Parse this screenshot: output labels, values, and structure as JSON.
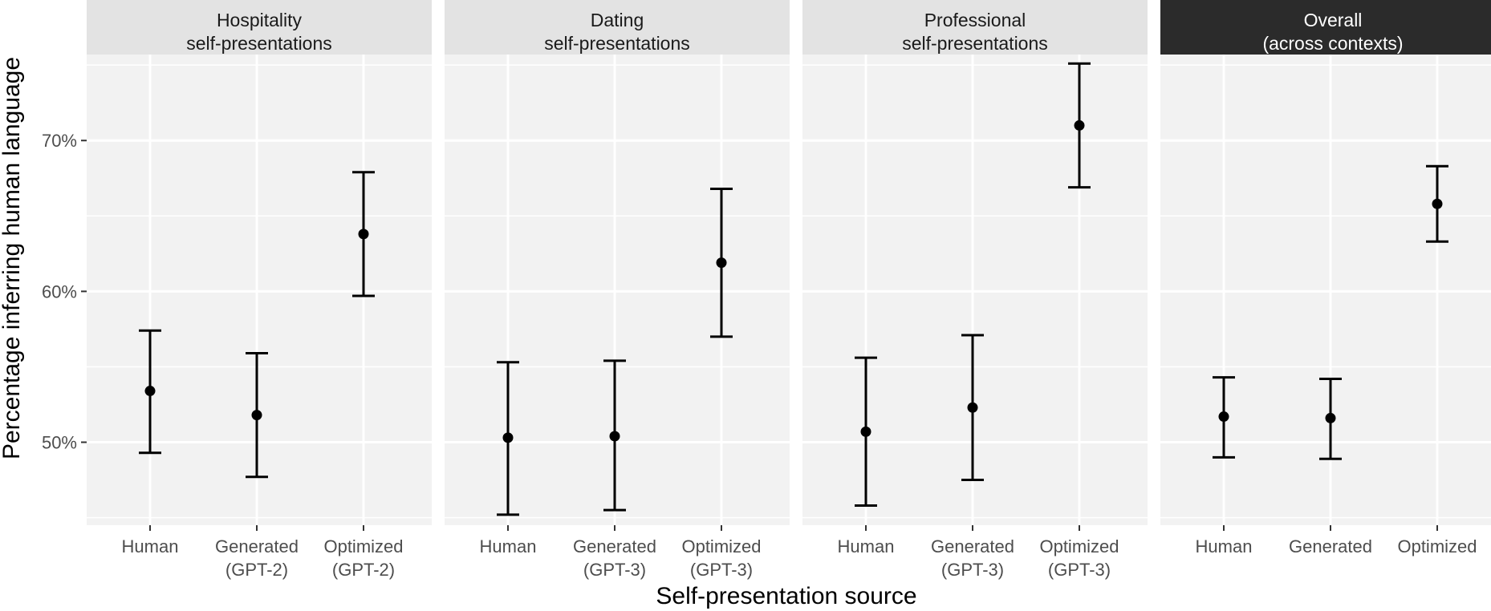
{
  "chart_data": {
    "type": "scatter",
    "subtype": "point-with-error-bars, faceted",
    "xlabel": "Self-presentation source",
    "ylabel": "Percentage inferring human language",
    "ylim": [
      44.5,
      75.7
    ],
    "y_ticks": [
      {
        "value": 50,
        "label": "50%"
      },
      {
        "value": 60,
        "label": "60%"
      },
      {
        "value": 70,
        "label": "70%"
      }
    ],
    "grid": true,
    "facets": [
      {
        "title_lines": [
          "Hospitality",
          "self-presentations"
        ],
        "highlight": false,
        "categories": [
          {
            "label_lines": [
              "Human"
            ],
            "mean": 53.4,
            "low": 49.3,
            "high": 57.4
          },
          {
            "label_lines": [
              "Generated",
              "(GPT-2)"
            ],
            "mean": 51.8,
            "low": 47.7,
            "high": 55.9
          },
          {
            "label_lines": [
              "Optimized",
              "(GPT-2)"
            ],
            "mean": 63.8,
            "low": 59.7,
            "high": 67.9
          }
        ]
      },
      {
        "title_lines": [
          "Dating",
          "self-presentations"
        ],
        "highlight": false,
        "categories": [
          {
            "label_lines": [
              "Human"
            ],
            "mean": 50.3,
            "low": 45.2,
            "high": 55.3
          },
          {
            "label_lines": [
              "Generated",
              "(GPT-3)"
            ],
            "mean": 50.4,
            "low": 45.5,
            "high": 55.4
          },
          {
            "label_lines": [
              "Optimized",
              "(GPT-3)"
            ],
            "mean": 61.9,
            "low": 57.0,
            "high": 66.8
          }
        ]
      },
      {
        "title_lines": [
          "Professional",
          "self-presentations"
        ],
        "highlight": false,
        "categories": [
          {
            "label_lines": [
              "Human"
            ],
            "mean": 50.7,
            "low": 45.8,
            "high": 55.6
          },
          {
            "label_lines": [
              "Generated",
              "(GPT-3)"
            ],
            "mean": 52.3,
            "low": 47.5,
            "high": 57.1
          },
          {
            "label_lines": [
              "Optimized",
              "(GPT-3)"
            ],
            "mean": 71.0,
            "low": 66.9,
            "high": 75.1
          }
        ]
      },
      {
        "title_lines": [
          "Overall",
          "(across contexts)"
        ],
        "highlight": true,
        "categories": [
          {
            "label_lines": [
              "Human"
            ],
            "mean": 51.7,
            "low": 49.0,
            "high": 54.3
          },
          {
            "label_lines": [
              "Generated"
            ],
            "mean": 51.6,
            "low": 48.9,
            "high": 54.2
          },
          {
            "label_lines": [
              "Optimized"
            ],
            "mean": 65.8,
            "low": 63.3,
            "high": 68.3
          }
        ]
      }
    ],
    "colors": {
      "panel_bg": "#f2f2f2",
      "grid_major": "#ffffff",
      "strip_bg": "#e3e3e3",
      "strip_bg_highlight": "#2b2b2b",
      "strip_text": "#1a1a1a",
      "strip_text_highlight": "#ffffff",
      "point": "#000000",
      "tick_text": "#4d4d4d",
      "tick_mark": "#333333"
    }
  }
}
